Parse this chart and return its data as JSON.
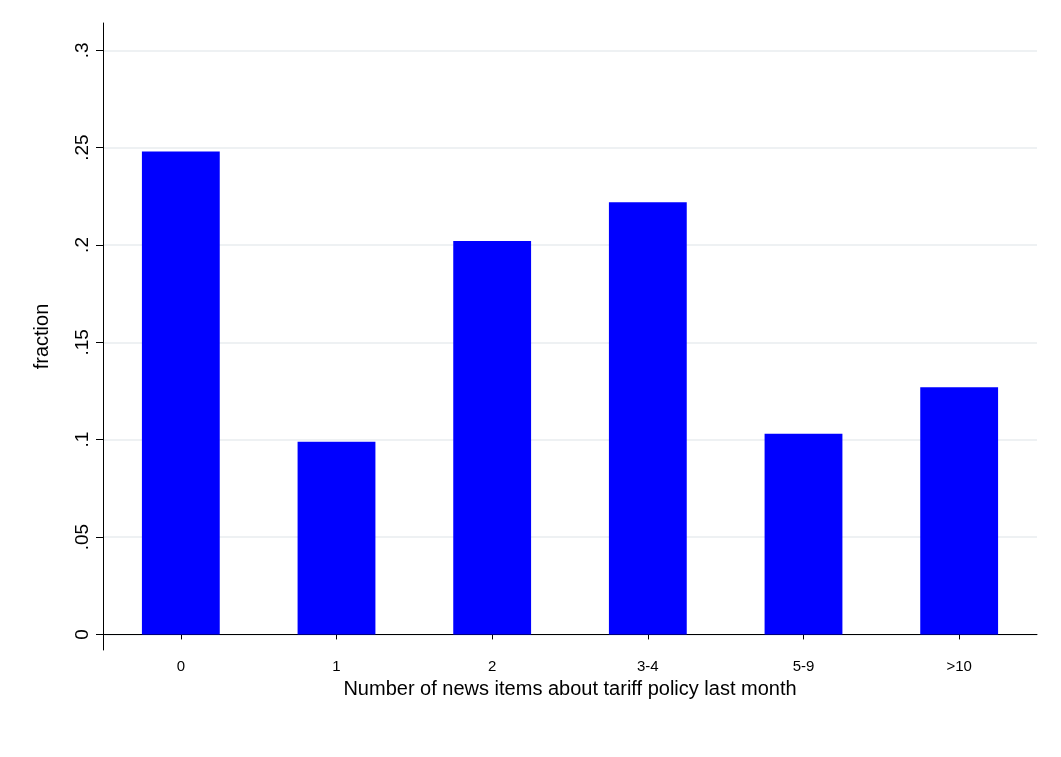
{
  "chart_data": {
    "type": "bar",
    "xlabel": "Number of news items about tariff policy last month",
    "ylabel": "fraction",
    "categories": [
      "0",
      "1",
      "2",
      "3-4",
      "5-9",
      ">10"
    ],
    "values": [
      0.248,
      0.099,
      0.202,
      0.222,
      0.103,
      0.127
    ],
    "color": "#0000ff",
    "ylim": [
      -0.008,
      0.314
    ],
    "yticks": [
      0,
      {
        "value": 0.05,
        "label": ".05"
      },
      {
        "value": 0.1,
        "label": ".1"
      },
      {
        "value": 0.15,
        "label": ".15"
      },
      {
        "value": 0.2,
        "label": ".2"
      },
      {
        "value": 0.25,
        "label": ".25"
      },
      {
        "value": 0.3,
        "label": ".3"
      }
    ],
    "grid": "y"
  }
}
